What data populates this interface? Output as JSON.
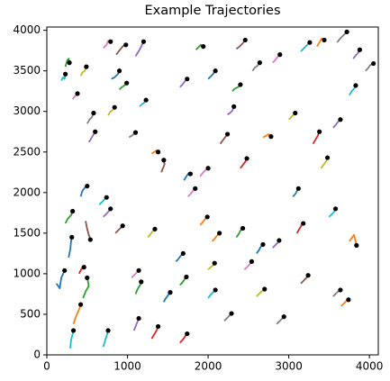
{
  "chart_data": {
    "type": "trajectory",
    "title": "Example Trajectories",
    "xlim": [
      0,
      4110
    ],
    "ylim": [
      0,
      4040
    ],
    "xticks": [
      0,
      1000,
      2000,
      3000,
      4000
    ],
    "yticks": [
      0,
      500,
      1000,
      1500,
      2000,
      2500,
      3000,
      3500,
      4000
    ],
    "grid": false,
    "end_marker_color": "#000000",
    "series": [
      {
        "color": "#17becf",
        "x": [
          290,
          300,
          320,
          330
        ],
        "values": [
          80,
          180,
          260,
          300
        ]
      },
      {
        "color": "#ff7f0e",
        "x": [
          330,
          360,
          400,
          420
        ],
        "values": [
          380,
          470,
          560,
          620
        ]
      },
      {
        "color": "#2ca02c",
        "x": [
          450,
          480,
          520,
          500
        ],
        "values": [
          700,
          780,
          850,
          950
        ]
      },
      {
        "color": "#1f77b4",
        "x": [
          120,
          160,
          180,
          220
        ],
        "values": [
          880,
          820,
          950,
          1040
        ]
      },
      {
        "color": "#d62728",
        "x": [
          400,
          430,
          470,
          460
        ],
        "values": [
          1000,
          1060,
          1100,
          1080
        ]
      },
      {
        "color": "#1f77b4",
        "x": [
          270,
          290,
          300,
          310
        ],
        "values": [
          1200,
          1300,
          1400,
          1450
        ]
      },
      {
        "color": "#8c564b",
        "x": [
          480,
          500,
          520,
          540
        ],
        "values": [
          1650,
          1550,
          1480,
          1420
        ]
      },
      {
        "color": "#2ca02c",
        "x": [
          230,
          260,
          300,
          320
        ],
        "values": [
          1620,
          1680,
          1720,
          1770
        ]
      },
      {
        "color": "#1f77b4",
        "x": [
          420,
          440,
          470,
          500
        ],
        "values": [
          1950,
          2020,
          2060,
          2080
        ]
      },
      {
        "color": "#9467bd",
        "x": [
          520,
          540,
          570,
          600
        ],
        "values": [
          2620,
          2650,
          2700,
          2750
        ]
      },
      {
        "color": "#7f7f7f",
        "x": [
          500,
          530,
          560,
          580
        ],
        "values": [
          2850,
          2900,
          2930,
          2980
        ]
      },
      {
        "color": "#e377c2",
        "x": [
          320,
          350,
          370,
          380
        ],
        "values": [
          3150,
          3190,
          3200,
          3220
        ]
      },
      {
        "color": "#17becf",
        "x": [
          180,
          200,
          220,
          230
        ],
        "values": [
          3380,
          3420,
          3400,
          3460
        ]
      },
      {
        "color": "#2ca02c",
        "x": [
          230,
          250,
          270,
          280
        ],
        "values": [
          3550,
          3620,
          3650,
          3600
        ]
      },
      {
        "color": "#bcbd22",
        "x": [
          420,
          440,
          470,
          490
        ],
        "values": [
          3440,
          3480,
          3500,
          3550
        ]
      },
      {
        "color": "#e377c2",
        "x": [
          700,
          740,
          760,
          790
        ],
        "values": [
          3780,
          3820,
          3870,
          3860
        ]
      },
      {
        "color": "#8c564b",
        "x": [
          860,
          900,
          940,
          980
        ],
        "values": [
          3700,
          3750,
          3800,
          3820
        ]
      },
      {
        "color": "#9467bd",
        "x": [
          1100,
          1150,
          1180,
          1200
        ],
        "values": [
          3680,
          3760,
          3820,
          3860
        ]
      },
      {
        "color": "#1f77b4",
        "x": [
          800,
          840,
          880,
          900
        ],
        "values": [
          3400,
          3420,
          3460,
          3500
        ]
      },
      {
        "color": "#2ca02c",
        "x": [
          900,
          930,
          960,
          990
        ],
        "values": [
          3270,
          3300,
          3320,
          3350
        ]
      },
      {
        "color": "#bcbd22",
        "x": [
          760,
          790,
          820,
          840
        ],
        "values": [
          2950,
          3000,
          3020,
          3050
        ]
      },
      {
        "color": "#17becf",
        "x": [
          1150,
          1180,
          1200,
          1230
        ],
        "values": [
          3060,
          3090,
          3100,
          3140
        ]
      },
      {
        "color": "#7f7f7f",
        "x": [
          1020,
          1050,
          1080,
          1100
        ],
        "values": [
          2680,
          2700,
          2720,
          2740
        ]
      },
      {
        "color": "#ff7f0e",
        "x": [
          1300,
          1330,
          1360,
          1380
        ],
        "values": [
          2480,
          2500,
          2520,
          2500
        ]
      },
      {
        "color": "#8c564b",
        "x": [
          1420,
          1440,
          1460,
          1450
        ],
        "values": [
          2250,
          2300,
          2350,
          2400
        ]
      },
      {
        "color": "#1f77b4",
        "x": [
          1700,
          1730,
          1760,
          1780
        ],
        "values": [
          2150,
          2200,
          2240,
          2230
        ]
      },
      {
        "color": "#e377c2",
        "x": [
          1900,
          1940,
          1970,
          2000
        ],
        "values": [
          2200,
          2250,
          2280,
          2300
        ]
      },
      {
        "color": "#d62728",
        "x": [
          2400,
          2430,
          2460,
          2480
        ],
        "values": [
          2300,
          2340,
          2380,
          2420
        ]
      },
      {
        "color": "#ff7f0e",
        "x": [
          2680,
          2720,
          2750,
          2780
        ],
        "values": [
          2680,
          2700,
          2720,
          2690
        ]
      },
      {
        "color": "#bcbd22",
        "x": [
          3000,
          3030,
          3050,
          3080
        ],
        "values": [
          2900,
          2930,
          2950,
          2980
        ]
      },
      {
        "color": "#9467bd",
        "x": [
          2240,
          2270,
          2300,
          2320
        ],
        "values": [
          2960,
          2980,
          3010,
          3060
        ]
      },
      {
        "color": "#2ca02c",
        "x": [
          2300,
          2330,
          2370,
          2400
        ],
        "values": [
          3250,
          3280,
          3300,
          3330
        ]
      },
      {
        "color": "#7f7f7f",
        "x": [
          2550,
          2580,
          2610,
          2640
        ],
        "values": [
          3500,
          3540,
          3560,
          3600
        ]
      },
      {
        "color": "#8c564b",
        "x": [
          2350,
          2390,
          2430,
          2460
        ],
        "values": [
          3770,
          3800,
          3840,
          3880
        ]
      },
      {
        "color": "#17becf",
        "x": [
          3150,
          3190,
          3230,
          3260
        ],
        "values": [
          3740,
          3780,
          3820,
          3850
        ]
      },
      {
        "color": "#ff7f0e",
        "x": [
          3350,
          3380,
          3410,
          3440
        ],
        "values": [
          3800,
          3850,
          3900,
          3880
        ]
      },
      {
        "color": "#7f7f7f",
        "x": [
          3600,
          3640,
          3680,
          3720
        ],
        "values": [
          3850,
          3900,
          3940,
          3980
        ]
      },
      {
        "color": "#9467bd",
        "x": [
          3800,
          3830,
          3860,
          3880
        ],
        "values": [
          3650,
          3690,
          3720,
          3760
        ]
      },
      {
        "color": "#7f7f7f",
        "x": [
          3950,
          3980,
          4010,
          4050
        ],
        "values": [
          3500,
          3530,
          3570,
          3590
        ]
      },
      {
        "color": "#17becf",
        "x": [
          3750,
          3780,
          3810,
          3830
        ],
        "values": [
          3200,
          3250,
          3280,
          3320
        ]
      },
      {
        "color": "#d62728",
        "x": [
          3300,
          3330,
          3360,
          3380
        ],
        "values": [
          2600,
          2650,
          2700,
          2750
        ]
      },
      {
        "color": "#9467bd",
        "x": [
          3550,
          3580,
          3610,
          3640
        ],
        "values": [
          2800,
          2830,
          2870,
          2900
        ]
      },
      {
        "color": "#bcbd22",
        "x": [
          3400,
          3430,
          3460,
          3480
        ],
        "values": [
          2300,
          2340,
          2380,
          2430
        ]
      },
      {
        "color": "#1f77b4",
        "x": [
          3050,
          3080,
          3100,
          3120
        ],
        "values": [
          1950,
          1980,
          2020,
          2050
        ]
      },
      {
        "color": "#17becf",
        "x": [
          3500,
          3530,
          3560,
          3580
        ],
        "values": [
          1700,
          1730,
          1760,
          1800
        ]
      },
      {
        "color": "#ff7f0e",
        "x": [
          3750,
          3780,
          3810,
          3840
        ],
        "values": [
          1400,
          1440,
          1480,
          1350
        ]
      },
      {
        "color": "#d62728",
        "x": [
          3100,
          3130,
          3160,
          3180
        ],
        "values": [
          1500,
          1550,
          1600,
          1620
        ]
      },
      {
        "color": "#9467bd",
        "x": [
          2800,
          2830,
          2860,
          2880
        ],
        "values": [
          1320,
          1350,
          1380,
          1410
        ]
      },
      {
        "color": "#8c564b",
        "x": [
          3150,
          3180,
          3210,
          3240
        ],
        "values": [
          880,
          910,
          940,
          980
        ]
      },
      {
        "color": "#7f7f7f",
        "x": [
          3550,
          3580,
          3610,
          3640
        ],
        "values": [
          720,
          750,
          780,
          800
        ]
      },
      {
        "color": "#ff7f0e",
        "x": [
          3650,
          3680,
          3710,
          3740
        ],
        "values": [
          600,
          630,
          660,
          680
        ]
      },
      {
        "color": "#bcbd22",
        "x": [
          2600,
          2630,
          2660,
          2700
        ],
        "values": [
          720,
          750,
          780,
          810
        ]
      },
      {
        "color": "#7f7f7f",
        "x": [
          2850,
          2880,
          2910,
          2940
        ],
        "values": [
          380,
          410,
          440,
          470
        ]
      },
      {
        "color": "#7f7f7f",
        "x": [
          2200,
          2230,
          2260,
          2290
        ],
        "values": [
          420,
          450,
          480,
          510
        ]
      },
      {
        "color": "#17becf",
        "x": [
          2000,
          2030,
          2060,
          2090
        ],
        "values": [
          700,
          740,
          770,
          800
        ]
      },
      {
        "color": "#d62728",
        "x": [
          1650,
          1680,
          1710,
          1740
        ],
        "values": [
          150,
          180,
          220,
          260
        ]
      },
      {
        "color": "#d62728",
        "x": [
          1300,
          1330,
          1360,
          1380
        ],
        "values": [
          200,
          250,
          300,
          350
        ]
      },
      {
        "color": "#9467bd",
        "x": [
          1080,
          1100,
          1120,
          1140
        ],
        "values": [
          300,
          350,
          400,
          450
        ]
      },
      {
        "color": "#17becf",
        "x": [
          700,
          720,
          740,
          760
        ],
        "values": [
          100,
          170,
          230,
          300
        ]
      },
      {
        "color": "#2ca02c",
        "x": [
          1100,
          1120,
          1150,
          1170
        ],
        "values": [
          750,
          800,
          850,
          900
        ]
      },
      {
        "color": "#1f77b4",
        "x": [
          1450,
          1470,
          1500,
          1530
        ],
        "values": [
          650,
          690,
          730,
          770
        ]
      },
      {
        "color": "#2ca02c",
        "x": [
          1650,
          1680,
          1700,
          1730
        ],
        "values": [
          860,
          890,
          920,
          960
        ]
      },
      {
        "color": "#bcbd22",
        "x": [
          2000,
          2030,
          2060,
          2080
        ],
        "values": [
          1050,
          1080,
          1100,
          1130
        ]
      },
      {
        "color": "#ff7f0e",
        "x": [
          2050,
          2080,
          2110,
          2140
        ],
        "values": [
          1400,
          1430,
          1470,
          1500
        ]
      },
      {
        "color": "#2ca02c",
        "x": [
          2350,
          2380,
          2400,
          2430
        ],
        "values": [
          1450,
          1490,
          1530,
          1560
        ]
      },
      {
        "color": "#1f77b4",
        "x": [
          2600,
          2630,
          2650,
          2680
        ],
        "values": [
          1250,
          1290,
          1330,
          1360
        ]
      },
      {
        "color": "#ff7f0e",
        "x": [
          1900,
          1930,
          1960,
          1990
        ],
        "values": [
          1600,
          1630,
          1670,
          1700
        ]
      },
      {
        "color": "#e377c2",
        "x": [
          1750,
          1780,
          1810,
          1840
        ],
        "values": [
          1950,
          1980,
          2020,
          2050
        ]
      },
      {
        "color": "#8c564b",
        "x": [
          850,
          880,
          910,
          940
        ],
        "values": [
          1500,
          1530,
          1560,
          1590
        ]
      },
      {
        "color": "#bcbd22",
        "x": [
          1250,
          1280,
          1310,
          1340
        ],
        "values": [
          1450,
          1480,
          1520,
          1550
        ]
      },
      {
        "color": "#e377c2",
        "x": [
          1050,
          1080,
          1110,
          1140
        ],
        "values": [
          950,
          980,
          1010,
          1040
        ]
      },
      {
        "color": "#9467bd",
        "x": [
          700,
          730,
          760,
          790
        ],
        "values": [
          1700,
          1730,
          1760,
          1800
        ]
      },
      {
        "color": "#17becf",
        "x": [
          650,
          680,
          710,
          740
        ],
        "values": [
          1850,
          1880,
          1910,
          1940
        ]
      },
      {
        "color": "#1f77b4",
        "x": [
          1600,
          1630,
          1660,
          1690
        ],
        "values": [
          1150,
          1180,
          1220,
          1250
        ]
      },
      {
        "color": "#e377c2",
        "x": [
          2450,
          2480,
          2510,
          2540
        ],
        "values": [
          1050,
          1080,
          1110,
          1150
        ]
      },
      {
        "color": "#8c564b",
        "x": [
          2150,
          2180,
          2210,
          2240
        ],
        "values": [
          2600,
          2640,
          2680,
          2720
        ]
      },
      {
        "color": "#1f77b4",
        "x": [
          2000,
          2030,
          2060,
          2090
        ],
        "values": [
          3400,
          3430,
          3460,
          3500
        ]
      },
      {
        "color": "#9467bd",
        "x": [
          1650,
          1680,
          1710,
          1740
        ],
        "values": [
          3300,
          3330,
          3370,
          3400
        ]
      },
      {
        "color": "#2ca02c",
        "x": [
          1850,
          1880,
          1910,
          1940
        ],
        "values": [
          3760,
          3790,
          3820,
          3800
        ]
      },
      {
        "color": "#e377c2",
        "x": [
          2800,
          2830,
          2860,
          2890
        ],
        "values": [
          3600,
          3630,
          3670,
          3700
        ]
      }
    ]
  }
}
